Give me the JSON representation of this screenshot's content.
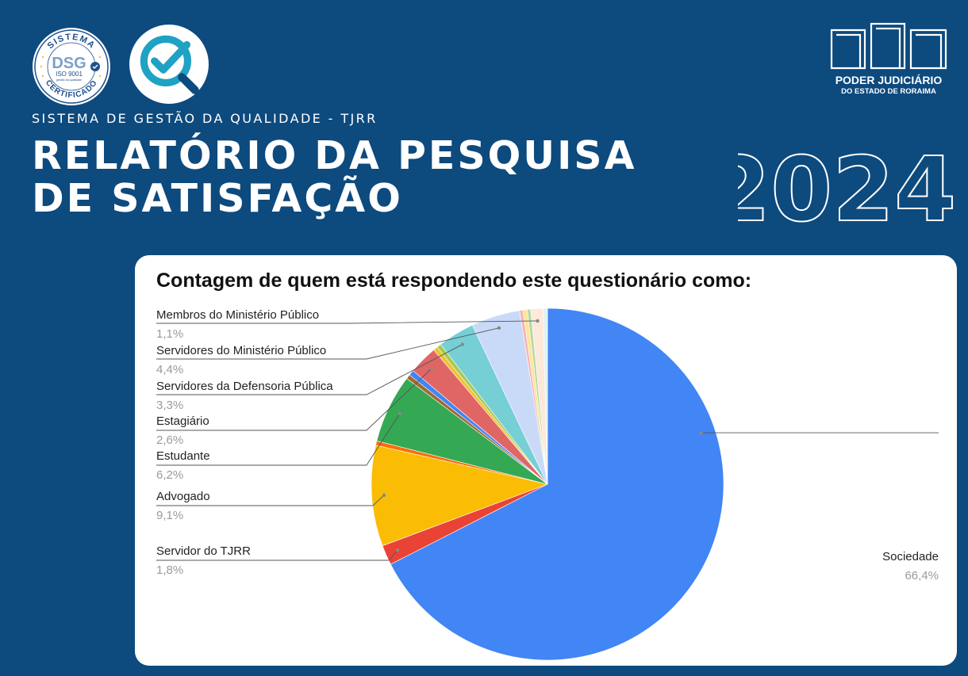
{
  "header": {
    "system_title": "SISTEMA DE GESTÃO DA QUALIDADE - TJRR",
    "title_line1": "RELATÓRIO DA PESQUISA",
    "title_line2": "DE SATISFAÇÃO",
    "year": "2024"
  },
  "logos": {
    "seal": {
      "top_text": "SISTEMA",
      "bottom_text": "CERTIFICADO",
      "mark": "DSG",
      "standard": "ISO 9001",
      "tagline": "gestão da qualidade"
    },
    "court": {
      "line1": "PODER JUDICIÁRIO",
      "line2": "DO ESTADO DE RORAIMA"
    },
    "check_icon": "magnifier-check-icon"
  },
  "colors": {
    "background": "#0d4a7e",
    "card": "#ffffff"
  },
  "chart_data": {
    "type": "pie",
    "title": "Contagem de quem está respondendo este questionário como:",
    "slices": [
      {
        "label": "Sociedade",
        "percent_label": "66,4%",
        "value": 66.4,
        "color": "#4285f4"
      },
      {
        "label": "Servidor do TJRR",
        "percent_label": "1,8%",
        "value": 1.8,
        "color": "#ea4335"
      },
      {
        "label": "Advogado",
        "percent_label": "9,1%",
        "value": 9.1,
        "color": "#fbbc04"
      },
      {
        "label": "",
        "percent_label": "",
        "value": 0.4,
        "color": "#ff6d01"
      },
      {
        "label": "Estudante",
        "percent_label": "6,2%",
        "value": 6.2,
        "color": "#34a853"
      },
      {
        "label": "",
        "percent_label": "",
        "value": 0.4,
        "color": "#9e6a2f"
      },
      {
        "label": "",
        "percent_label": "",
        "value": 0.5,
        "color": "#4285f4"
      },
      {
        "label": "Estagiário",
        "percent_label": "2,6%",
        "value": 2.6,
        "color": "#e06666"
      },
      {
        "label": "",
        "percent_label": "",
        "value": 0.4,
        "color": "#f1c232"
      },
      {
        "label": "",
        "percent_label": "",
        "value": 0.4,
        "color": "#a7c957"
      },
      {
        "label": "Servidores da Defensoria Pública",
        "percent_label": "3,3%",
        "value": 3.3,
        "color": "#76cfd4"
      },
      {
        "label": "Servidores do Ministério Público",
        "percent_label": "4,4%",
        "value": 4.4,
        "color": "#c9daf8"
      },
      {
        "label": "",
        "percent_label": "",
        "value": 0.3,
        "color": "#f4b6b6"
      },
      {
        "label": "",
        "percent_label": "",
        "value": 0.4,
        "color": "#ffe599"
      },
      {
        "label": "",
        "percent_label": "",
        "value": 0.3,
        "color": "#b6d7a8"
      },
      {
        "label": "Membros do Ministério Público",
        "percent_label": "1,1%",
        "value": 1.1,
        "color": "#fde9d9"
      },
      {
        "label": "",
        "percent_label": "",
        "value": 0.4,
        "color": "#dff3f5"
      }
    ]
  }
}
